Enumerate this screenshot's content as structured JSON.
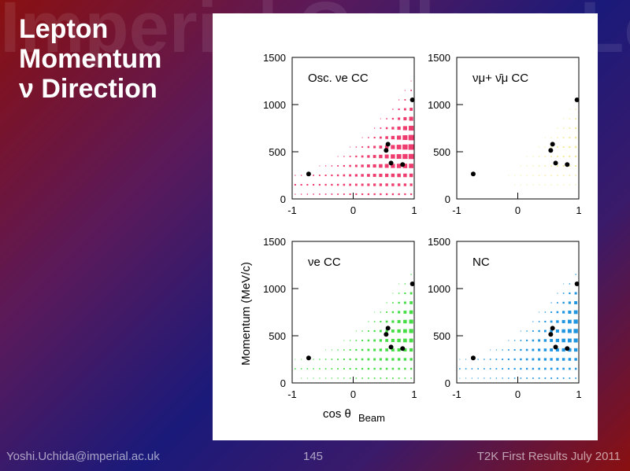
{
  "slide": {
    "background_words": "Imperial College London",
    "title_lines": [
      "Lepton",
      "Momentum",
      "ν Direction"
    ],
    "footer_left": "Yoshi.Uchida@imperial.ac.uk",
    "footer_center": "145",
    "footer_right": "T2K First Results July 2011"
  },
  "chart_data": {
    "type": "heatmap",
    "xlabel": "cos θ",
    "xlabel_sub": "Beam",
    "ylabel": "Momentum (MeV/c)",
    "xlim": [
      -1,
      1
    ],
    "ylim": [
      0,
      1500
    ],
    "xticks": [
      "-1",
      "0",
      "1"
    ],
    "yticks": [
      "0",
      "500",
      "1000",
      "1500"
    ],
    "grid": false,
    "events": [
      {
        "cos": -0.73,
        "p": 265
      },
      {
        "cos": 0.54,
        "p": 515
      },
      {
        "cos": 0.57,
        "p": 580
      },
      {
        "cos": 0.62,
        "p": 380
      },
      {
        "cos": 0.81,
        "p": 365
      },
      {
        "cos": 0.97,
        "p": 1050
      }
    ],
    "panels": [
      {
        "label": "Osc. νe CC",
        "color": "#ee3c6e",
        "scale": 1.0
      },
      {
        "label": "νμ+ ν̄μ CC",
        "color": "#f3eb9a",
        "scale": 0.12
      },
      {
        "label": "νe CC",
        "color": "#44dd44",
        "scale": 0.55
      },
      {
        "label": "NC",
        "color": "#2096e0",
        "scale": 0.6
      }
    ]
  }
}
